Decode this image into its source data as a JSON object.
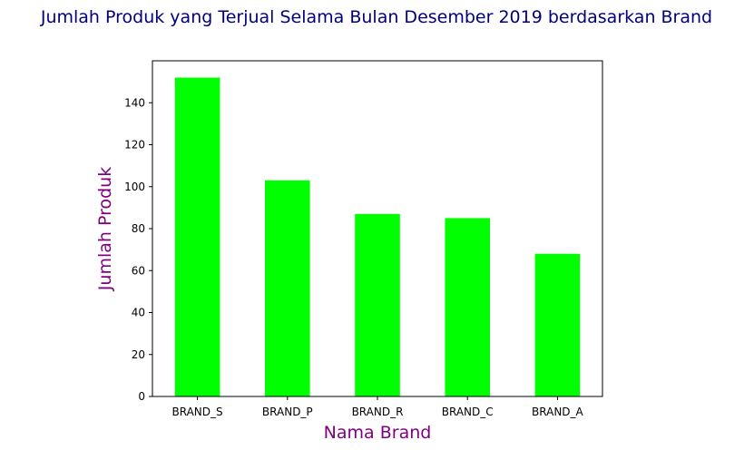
{
  "chart_data": {
    "type": "bar",
    "title": "Jumlah Produk yang Terjual Selama Bulan Desember 2019 berdasarkan Brand",
    "xlabel": "Nama Brand",
    "ylabel": "Jumlah Produk",
    "categories": [
      "BRAND_S",
      "BRAND_P",
      "BRAND_R",
      "BRAND_C",
      "BRAND_A"
    ],
    "values": [
      152,
      103,
      87,
      85,
      68
    ],
    "ylim": [
      0,
      160
    ],
    "yticks": [
      0,
      20,
      40,
      60,
      80,
      100,
      120,
      140
    ],
    "grid": false,
    "legend": "none",
    "colors": {
      "bar": "#00ff00",
      "title": "#000080",
      "axis_label": "#800080",
      "axis": "#000000"
    }
  }
}
